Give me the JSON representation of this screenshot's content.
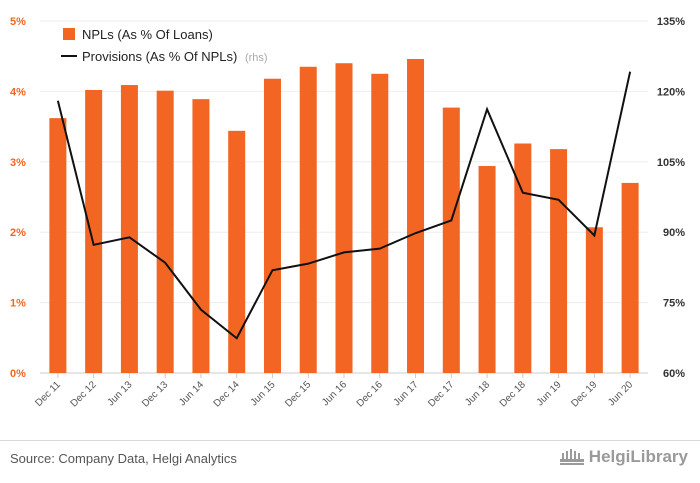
{
  "chart_data": {
    "type": "bar+line",
    "categories": [
      "Dec 11",
      "Dec 12",
      "Jun 13",
      "Dec 13",
      "Jun 14",
      "Dec 14",
      "Jun 15",
      "Dec 15",
      "Jun 16",
      "Dec 16",
      "Jun 17",
      "Dec 17",
      "Jun 18",
      "Dec 18",
      "Jun 19",
      "Dec 19",
      "Jun 20"
    ],
    "series": [
      {
        "name": "NPLs (As % Of Loans)",
        "type": "bar",
        "axis": "left",
        "color": "#f26522",
        "values": [
          3.62,
          4.02,
          4.09,
          4.01,
          3.89,
          3.44,
          4.18,
          4.35,
          4.4,
          4.25,
          4.46,
          3.77,
          2.94,
          3.26,
          3.18,
          2.07,
          2.7
        ]
      },
      {
        "name": "Provisions (As % Of NPLs)",
        "suffix": "(rhs)",
        "type": "line",
        "axis": "right",
        "color": "#111111",
        "values": [
          118.0,
          87.3,
          88.9,
          83.5,
          73.5,
          67.4,
          81.9,
          83.3,
          85.7,
          86.5,
          89.8,
          92.5,
          116.2,
          98.4,
          96.9,
          89.3,
          124.2
        ]
      }
    ],
    "yleft": {
      "ticks": [
        "0%",
        "1%",
        "2%",
        "3%",
        "4%",
        "5%"
      ],
      "range": [
        0,
        5
      ]
    },
    "yright": {
      "ticks": [
        "60%",
        "75%",
        "90%",
        "105%",
        "120%",
        "135%"
      ],
      "range": [
        60,
        135
      ]
    },
    "grid": true,
    "legend": "top-left"
  },
  "footer": {
    "source": "Source: Company Data, Helgi Analytics",
    "logo": "HelgiLibrary"
  }
}
